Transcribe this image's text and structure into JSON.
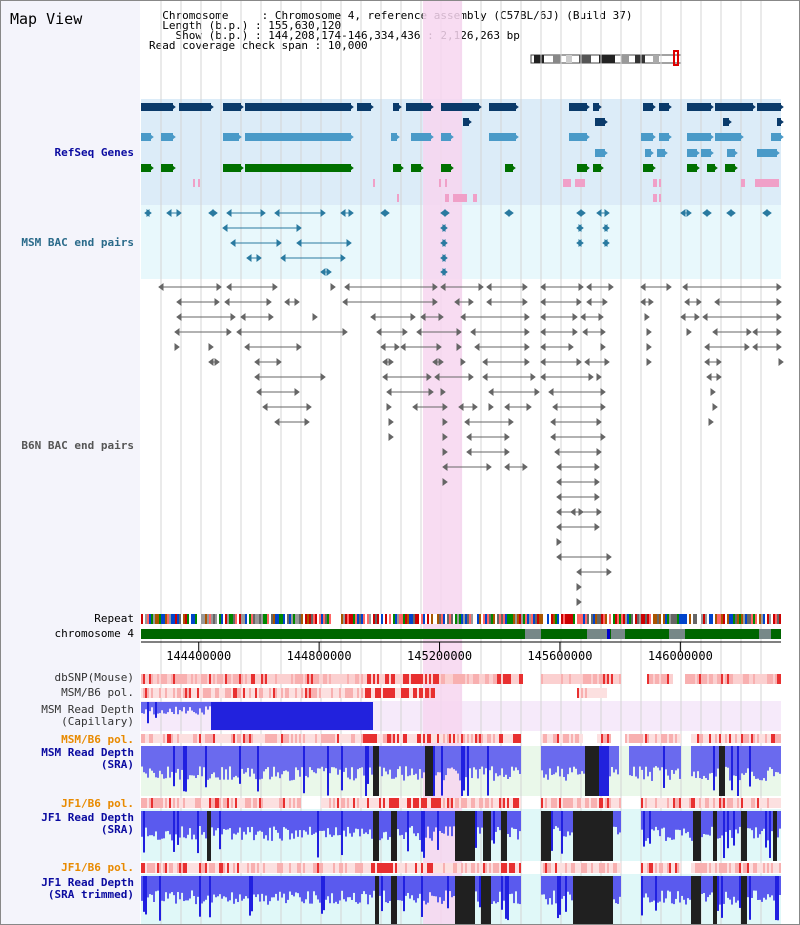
{
  "window": {
    "title": "Map View"
  },
  "info": {
    "chromosome_label": "Chromosome",
    "chromosome_value": "Chromosome 4, reference assembly (C57BL/6J) (Build 37)",
    "length_label": "Length (b.p.)",
    "length_value": "155,630,120",
    "show_label": "Show (b.p.)",
    "show_value": "144,208,174-146,334,436 : 2,126,263 bp",
    "coverage_label": "Read coverage check span",
    "coverage_value": "10,000"
  },
  "tracks": {
    "refseq": "RefSeq Genes",
    "msm_bac": "MSM BAC end pairs",
    "b6n_bac": "B6N BAC end pairs",
    "repeat": "Repeat",
    "chromosome": "chromosome 4",
    "dbsnp": "dbSNP(Mouse)",
    "msm_b6_pol_1": "MSM/B6 pol.",
    "msm_depth_cap_1": "MSM Read Depth",
    "msm_depth_cap_2": "(Capillary)",
    "msm_b6_pol_2": "MSM/B6 pol.",
    "msm_depth_sra_1": "MSM Read Depth",
    "msm_depth_sra_2": "(SRA)",
    "jf1_b6_pol_1": "JF1/B6 pol.",
    "jf1_depth_sra_1": "JF1 Read Depth",
    "jf1_depth_sra_2": "(SRA)",
    "jf1_b6_pol_2": "JF1/B6 pol.",
    "jf1_depth_trim_1": "JF1 Read Depth",
    "jf1_depth_trim_2": "(SRA trimmed)"
  },
  "axis": {
    "ticks": [
      "144400000",
      "144800000",
      "145200000",
      "145600000",
      "146000000"
    ],
    "tick_values": [
      144400000,
      144800000,
      145200000,
      145600000,
      146000000
    ],
    "range": [
      144208174,
      146334436
    ]
  },
  "highlight": {
    "start": 145145000,
    "end": 145275000
  },
  "colors": {
    "refseq_bg": "#dcecf8",
    "bac_bg": "#e8f8fc",
    "highlight": "#f7d6f0",
    "gene_dark": "#0a3a6a",
    "gene_blue": "#4a9ac8",
    "gene_green": "#007000",
    "gene_pink": "#f0a0c8",
    "bac_teal": "#2a7aa0",
    "bac_gray": "#666666",
    "chrom_green": "#006600",
    "depth_blue": "#2020e0",
    "depth_black": "#202020"
  }
}
